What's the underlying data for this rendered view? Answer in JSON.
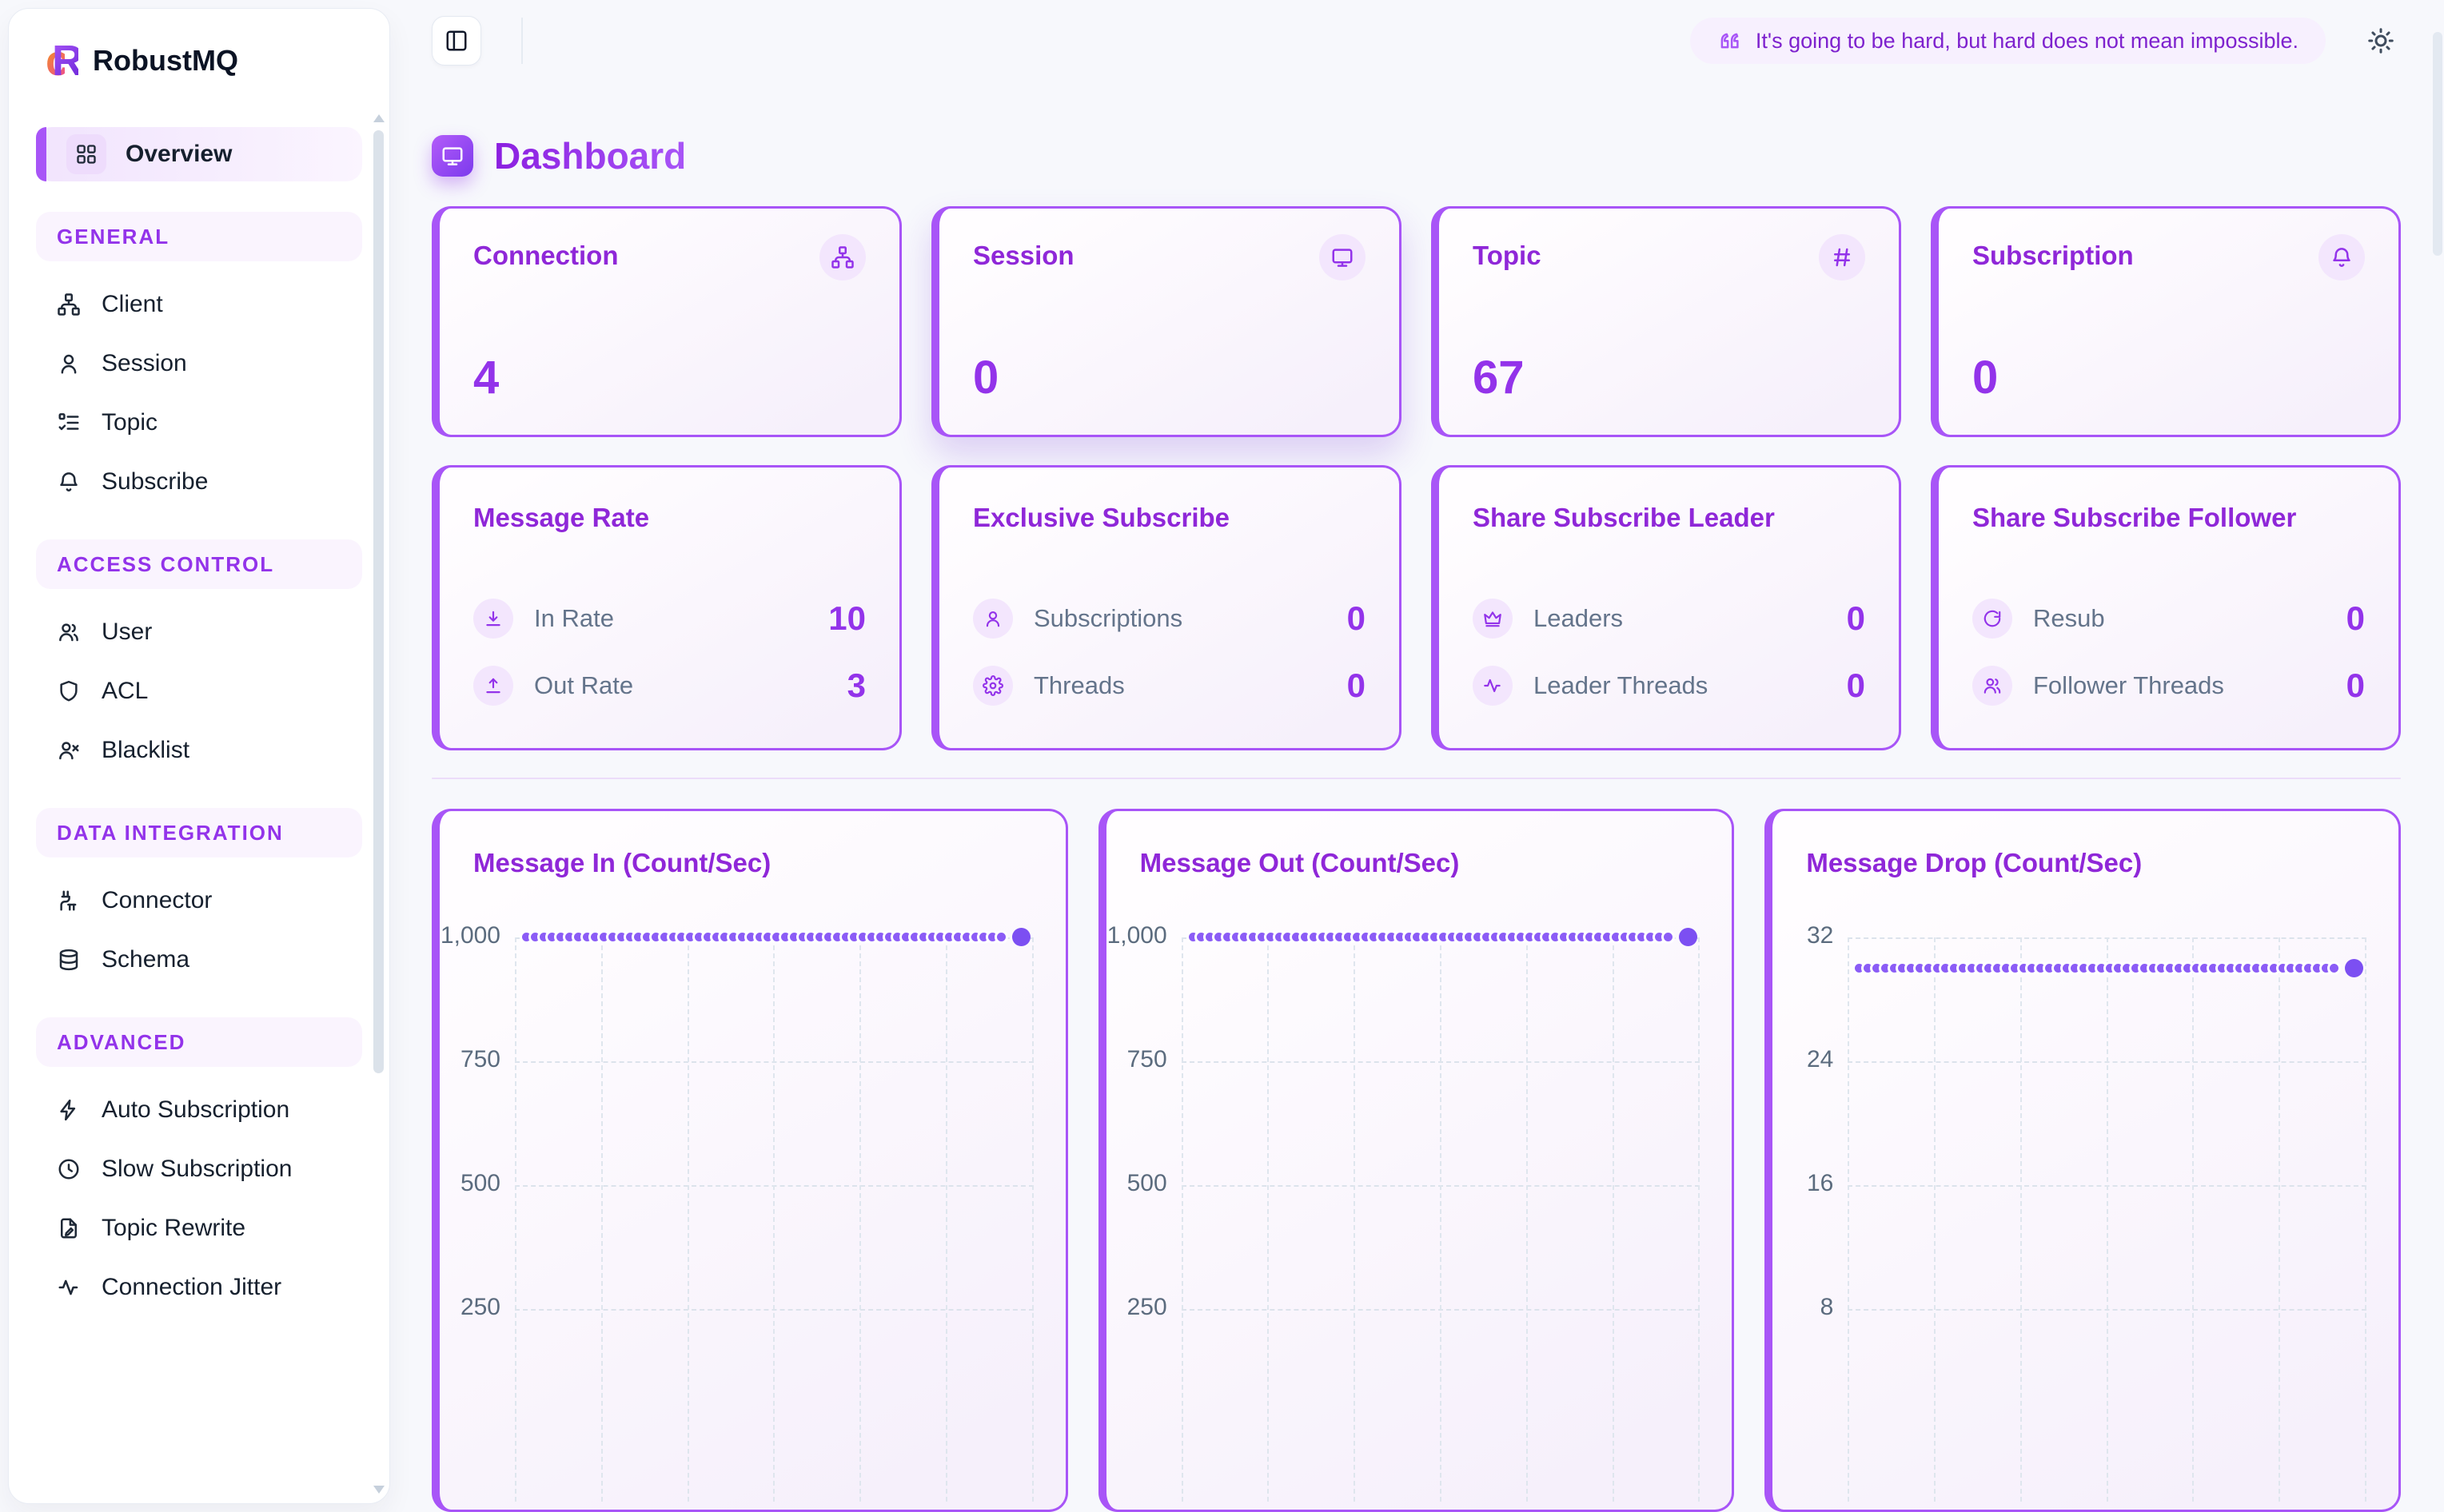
{
  "app": {
    "brand": "RobustMQ",
    "logo_left_glyph": "c",
    "logo_right_glyph": "R"
  },
  "colors": {
    "accent": "#9333ea",
    "card_border": "#a855f7",
    "dot_series": "#8b5cf6",
    "label_gray": "#64748b",
    "quote_text": "#7e22ce",
    "section_pill_bg": "#faf4fe"
  },
  "sidebar": {
    "overview": {
      "label": "Overview",
      "icon": "layout-grid"
    },
    "sections": [
      {
        "label": "GENERAL",
        "items": [
          {
            "label": "Client",
            "icon": "network"
          },
          {
            "label": "Session",
            "icon": "user"
          },
          {
            "label": "Topic",
            "icon": "list-checks"
          },
          {
            "label": "Subscribe",
            "icon": "bell"
          }
        ]
      },
      {
        "label": "ACCESS CONTROL",
        "items": [
          {
            "label": "User",
            "icon": "users"
          },
          {
            "label": "ACL",
            "icon": "shield"
          },
          {
            "label": "Blacklist",
            "icon": "user-x"
          }
        ]
      },
      {
        "label": "DATA INTEGRATION",
        "items": [
          {
            "label": "Connector",
            "icon": "cable"
          },
          {
            "label": "Schema",
            "icon": "database"
          }
        ]
      },
      {
        "label": "ADVANCED",
        "items": [
          {
            "label": "Auto Subscription",
            "icon": "zap"
          },
          {
            "label": "Slow Subscription",
            "icon": "clock"
          },
          {
            "label": "Topic Rewrite",
            "icon": "file-pen"
          },
          {
            "label": "Connection Jitter",
            "icon": "activity"
          }
        ]
      }
    ]
  },
  "topbar": {
    "toggle_icon": "panel-left",
    "quote": "It's going to be hard, but hard does not mean impossible.",
    "quote_icon": "quote",
    "theme_icon": "sun"
  },
  "page": {
    "title": "Dashboard",
    "icon": "monitor"
  },
  "stat_cards": [
    {
      "title": "Connection",
      "icon": "network",
      "value": "4",
      "elevated": false
    },
    {
      "title": "Session",
      "icon": "monitor",
      "value": "0",
      "elevated": true
    },
    {
      "title": "Topic",
      "icon": "hash",
      "value": "67",
      "elevated": false
    },
    {
      "title": "Subscription",
      "icon": "bell",
      "value": "0",
      "elevated": false
    }
  ],
  "metric_cards": [
    {
      "title": "Message Rate",
      "rows": [
        {
          "icon": "download",
          "label": "In Rate",
          "value": "10"
        },
        {
          "icon": "upload",
          "label": "Out Rate",
          "value": "3"
        }
      ]
    },
    {
      "title": "Exclusive Subscribe",
      "rows": [
        {
          "icon": "user-round",
          "label": "Subscriptions",
          "value": "0"
        },
        {
          "icon": "gear",
          "label": "Threads",
          "value": "0"
        }
      ]
    },
    {
      "title": "Share Subscribe Leader",
      "rows": [
        {
          "icon": "crown",
          "label": "Leaders",
          "value": "0"
        },
        {
          "icon": "activity",
          "label": "Leader Threads",
          "value": "0"
        }
      ]
    },
    {
      "title": "Share Subscribe Follower",
      "rows": [
        {
          "icon": "refresh",
          "label": "Resub",
          "value": "0"
        },
        {
          "icon": "users",
          "label": "Follower Threads",
          "value": "0"
        }
      ]
    }
  ],
  "chart_data": [
    {
      "type": "line",
      "title": "Message In (Count/Sec)",
      "series": [
        {
          "name": "message_in",
          "style": "dotted-circle-markers",
          "constant_value": 1000
        }
      ],
      "current_value": 1000,
      "yticks": [
        1000,
        750,
        500,
        250
      ],
      "ytick_labels": [
        "1,000",
        "750",
        "500",
        "250"
      ],
      "ytick_labels_clipped_on_screen": true,
      "grid": "dashed",
      "xticks_visible": false,
      "legend": "none"
    },
    {
      "type": "line",
      "title": "Message Out (Count/Sec)",
      "series": [
        {
          "name": "message_out",
          "style": "dotted-circle-markers",
          "constant_value": 1000
        }
      ],
      "current_value": 1000,
      "yticks": [
        1000,
        750,
        500,
        250
      ],
      "ytick_labels": [
        "1,000",
        "750",
        "500",
        "250"
      ],
      "ytick_labels_clipped_on_screen": true,
      "grid": "dashed",
      "xticks_visible": false,
      "legend": "none"
    },
    {
      "type": "line",
      "title": "Message Drop (Count/Sec)",
      "series": [
        {
          "name": "message_drop",
          "style": "dotted-circle-markers",
          "constant_value": 30
        }
      ],
      "current_value": 30,
      "yticks": [
        32,
        24,
        16,
        8
      ],
      "ytick_labels": [
        "32",
        "24",
        "16",
        "8"
      ],
      "ytick_labels_clipped_on_screen": false,
      "grid": "dashed",
      "xticks_visible": false,
      "legend": "none"
    }
  ]
}
